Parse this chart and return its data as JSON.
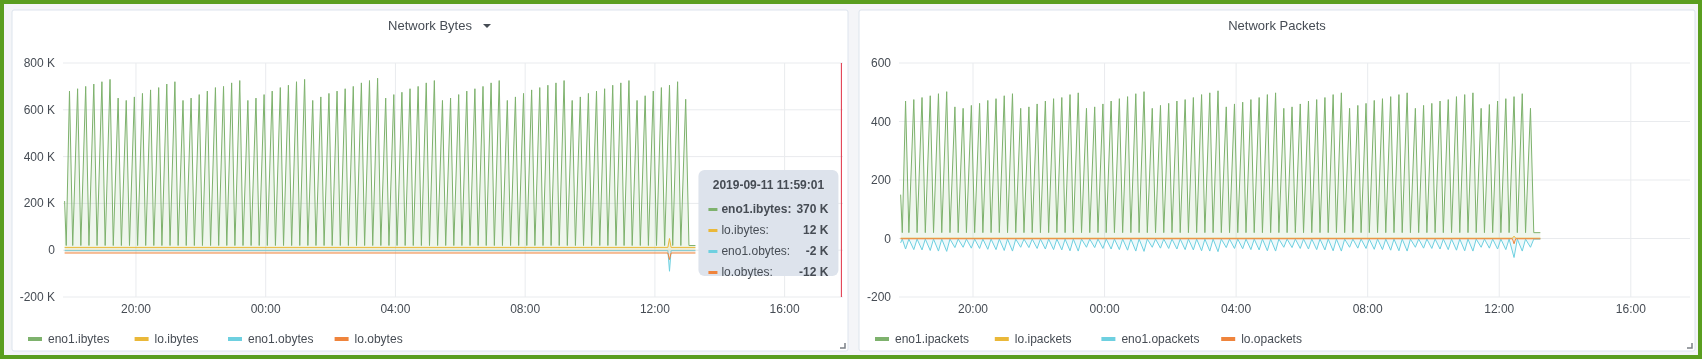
{
  "chart_data": [
    {
      "type": "area",
      "title": "Network Bytes",
      "x": [
        "2019-09-10T17:48",
        "2019-09-10T17:51",
        "2019-09-10T17:57",
        "2019-09-10T18:03",
        "2019-09-10T18:12",
        "2019-09-10T18:18",
        "2019-09-10T18:27",
        "2019-09-10T18:33",
        "2019-09-10T18:42",
        "2019-09-10T18:48",
        "2019-09-10T18:57",
        "2019-09-10T19:03",
        "2019-09-10T19:12",
        "2019-09-10T19:18",
        "2019-09-10T19:27",
        "2019-09-10T19:33",
        "2019-09-10T19:42",
        "2019-09-10T19:48",
        "2019-09-10T19:57",
        "2019-09-10T20:03",
        "2019-09-10T20:12",
        "2019-09-10T20:18",
        "2019-09-10T20:27",
        "2019-09-10T20:33",
        "2019-09-10T20:42",
        "2019-09-10T20:48",
        "2019-09-10T20:57",
        "2019-09-10T21:03",
        "2019-09-10T21:12",
        "2019-09-10T21:18",
        "2019-09-10T21:27",
        "2019-09-10T21:33",
        "2019-09-10T21:42",
        "2019-09-10T21:48",
        "2019-09-10T21:57",
        "2019-09-10T22:03",
        "2019-09-10T22:12",
        "2019-09-10T22:18",
        "2019-09-10T22:27",
        "2019-09-10T22:33",
        "2019-09-10T22:42",
        "2019-09-10T22:48",
        "2019-09-10T22:57",
        "2019-09-10T23:03",
        "2019-09-10T23:12",
        "2019-09-10T23:18",
        "2019-09-10T23:27",
        "2019-09-10T23:33",
        "2019-09-10T23:42",
        "2019-09-10T23:48",
        "2019-09-10T23:57",
        "2019-09-11T00:03",
        "2019-09-11T00:12",
        "2019-09-11T00:18",
        "2019-09-11T00:27",
        "2019-09-11T00:33",
        "2019-09-11T00:42",
        "2019-09-11T00:48",
        "2019-09-11T00:57",
        "2019-09-11T01:03",
        "2019-09-11T01:12",
        "2019-09-11T01:18",
        "2019-09-11T01:27",
        "2019-09-11T01:33",
        "2019-09-11T01:42",
        "2019-09-11T01:48",
        "2019-09-11T01:57",
        "2019-09-11T02:03",
        "2019-09-11T02:12",
        "2019-09-11T02:18",
        "2019-09-11T02:27",
        "2019-09-11T02:33",
        "2019-09-11T02:42",
        "2019-09-11T02:48",
        "2019-09-11T02:57",
        "2019-09-11T03:03",
        "2019-09-11T03:12",
        "2019-09-11T03:18",
        "2019-09-11T03:27",
        "2019-09-11T03:33",
        "2019-09-11T03:42",
        "2019-09-11T03:48",
        "2019-09-11T03:57",
        "2019-09-11T04:03",
        "2019-09-11T04:12",
        "2019-09-11T04:18",
        "2019-09-11T04:27",
        "2019-09-11T04:33",
        "2019-09-11T04:42",
        "2019-09-11T04:48",
        "2019-09-11T04:57",
        "2019-09-11T05:03",
        "2019-09-11T05:12",
        "2019-09-11T05:18",
        "2019-09-11T05:27",
        "2019-09-11T05:33",
        "2019-09-11T05:42",
        "2019-09-11T05:48",
        "2019-09-11T05:57",
        "2019-09-11T06:03",
        "2019-09-11T06:12",
        "2019-09-11T06:18",
        "2019-09-11T06:27",
        "2019-09-11T06:33",
        "2019-09-11T06:42",
        "2019-09-11T06:48",
        "2019-09-11T06:57",
        "2019-09-11T07:03",
        "2019-09-11T07:12",
        "2019-09-11T07:18",
        "2019-09-11T07:27",
        "2019-09-11T07:33",
        "2019-09-11T07:42",
        "2019-09-11T07:48",
        "2019-09-11T07:57",
        "2019-09-11T08:03",
        "2019-09-11T08:12",
        "2019-09-11T08:18",
        "2019-09-11T08:27",
        "2019-09-11T08:33",
        "2019-09-11T08:42",
        "2019-09-11T08:48",
        "2019-09-11T08:57",
        "2019-09-11T09:03",
        "2019-09-11T09:12",
        "2019-09-11T09:18",
        "2019-09-11T09:27",
        "2019-09-11T09:33",
        "2019-09-11T09:42",
        "2019-09-11T09:48",
        "2019-09-11T09:57",
        "2019-09-11T10:03",
        "2019-09-11T10:12",
        "2019-09-11T10:18",
        "2019-09-11T10:27",
        "2019-09-11T10:33",
        "2019-09-11T10:42",
        "2019-09-11T10:48",
        "2019-09-11T10:57",
        "2019-09-11T11:03",
        "2019-09-11T11:12",
        "2019-09-11T11:18",
        "2019-09-11T11:27",
        "2019-09-11T11:33",
        "2019-09-11T11:42",
        "2019-09-11T11:48",
        "2019-09-11T11:57",
        "2019-09-11T12:03",
        "2019-09-11T12:12",
        "2019-09-11T12:18",
        "2019-09-11T12:27",
        "2019-09-11T12:33",
        "2019-09-11T12:42",
        "2019-09-11T12:48",
        "2019-09-11T12:57",
        "2019-09-11T13:03",
        "2019-09-11T13:15"
      ],
      "series": [
        {
          "name": "eno1.ibytes",
          "color": "#7eb26d",
          "values": [
            210,
            20,
            680,
            20,
            690,
            20,
            700,
            20,
            710,
            20,
            720,
            20,
            730,
            20,
            650,
            20,
            640,
            20,
            655,
            20,
            670,
            20,
            685,
            20,
            695,
            20,
            710,
            20,
            720,
            20,
            640,
            20,
            650,
            20,
            665,
            20,
            680,
            20,
            695,
            20,
            700,
            20,
            715,
            20,
            725,
            20,
            640,
            20,
            650,
            20,
            665,
            20,
            680,
            20,
            695,
            20,
            705,
            20,
            720,
            20,
            730,
            20,
            640,
            20,
            655,
            20,
            670,
            20,
            680,
            20,
            690,
            20,
            700,
            20,
            715,
            20,
            725,
            20,
            735,
            20,
            650,
            20,
            665,
            20,
            675,
            20,
            690,
            20,
            700,
            20,
            715,
            20,
            725,
            20,
            640,
            20,
            650,
            20,
            665,
            20,
            680,
            20,
            690,
            20,
            700,
            20,
            715,
            20,
            725,
            20,
            640,
            20,
            655,
            20,
            670,
            20,
            685,
            20,
            695,
            20,
            705,
            20,
            715,
            20,
            725,
            20,
            640,
            20,
            655,
            20,
            670,
            20,
            680,
            20,
            690,
            20,
            705,
            20,
            715,
            20,
            725,
            20,
            640,
            20,
            660,
            20,
            680,
            20,
            695,
            20,
            705,
            20,
            720,
            20,
            645,
            20,
            20
          ]
        },
        {
          "name": "lo.ibytes",
          "color": "#eab839",
          "x": [
            "2019-09-10T17:48",
            "2019-09-11T12:24",
            "2019-09-11T12:27",
            "2019-09-11T12:30",
            "2019-09-11T13:15"
          ],
          "values": [
            12,
            12,
            50,
            12,
            12
          ]
        },
        {
          "name": "eno1.obytes",
          "color": "#6ed0e0",
          "x": [
            "2019-09-10T17:48",
            "2019-09-11T12:24",
            "2019-09-11T12:27",
            "2019-09-11T12:30",
            "2019-09-11T13:15"
          ],
          "values": [
            -2,
            -2,
            -90,
            -2,
            -2
          ]
        },
        {
          "name": "lo.obytes",
          "color": "#ef843c",
          "x": [
            "2019-09-10T17:48",
            "2019-09-11T12:24",
            "2019-09-11T12:27",
            "2019-09-11T12:30",
            "2019-09-11T13:15"
          ],
          "values": [
            -12,
            -12,
            -40,
            -12,
            -12
          ]
        }
      ],
      "xlim": [
        "2019-09-10T17:45",
        "2019-09-11T17:48"
      ],
      "xticks": [
        {
          "value": "2019-09-10T20:00",
          "label": "20:00"
        },
        {
          "value": "2019-09-11T00:00",
          "label": "00:00"
        },
        {
          "value": "2019-09-11T04:00",
          "label": "04:00"
        },
        {
          "value": "2019-09-11T08:00",
          "label": "08:00"
        },
        {
          "value": "2019-09-11T12:00",
          "label": "12:00"
        },
        {
          "value": "2019-09-11T16:00",
          "label": "16:00"
        }
      ],
      "ylim": [
        -200,
        800
      ],
      "yticks": [
        {
          "value": -200,
          "label": "-200 K"
        },
        0,
        {
          "value": 200,
          "label": "200 K"
        },
        {
          "value": 400,
          "label": "400 K"
        },
        {
          "value": 600,
          "label": "600 K"
        },
        {
          "value": 800,
          "label": "800 K"
        }
      ],
      "ref_lines": [
        {
          "axis": "x",
          "value": "2019-09-11T17:45",
          "color": "#e02f44"
        }
      ],
      "annotations": [
        "2019-09-11 11:59:01",
        "eno1.ibytes:",
        "370 K",
        "lo.ibytes:",
        "12 K",
        "eno1.obytes:",
        "-2 K",
        "lo.obytes:",
        "-12 K"
      ],
      "grid": true,
      "legend": "bottom"
    },
    {
      "type": "area",
      "title": "Network Packets",
      "x": [
        "2019-09-10T17:48",
        "2019-09-10T17:51",
        "2019-09-10T17:57",
        "2019-09-10T18:03",
        "2019-09-10T18:12",
        "2019-09-10T18:18",
        "2019-09-10T18:27",
        "2019-09-10T18:33",
        "2019-09-10T18:42",
        "2019-09-10T18:48",
        "2019-09-10T18:57",
        "2019-09-10T19:03",
        "2019-09-10T19:12",
        "2019-09-10T19:18",
        "2019-09-10T19:27",
        "2019-09-10T19:33",
        "2019-09-10T19:42",
        "2019-09-10T19:48",
        "2019-09-10T19:57",
        "2019-09-10T20:03",
        "2019-09-10T20:12",
        "2019-09-10T20:18",
        "2019-09-10T20:27",
        "2019-09-10T20:33",
        "2019-09-10T20:42",
        "2019-09-10T20:48",
        "2019-09-10T20:57",
        "2019-09-10T21:03",
        "2019-09-10T21:12",
        "2019-09-10T21:18",
        "2019-09-10T21:27",
        "2019-09-10T21:33",
        "2019-09-10T21:42",
        "2019-09-10T21:48",
        "2019-09-10T21:57",
        "2019-09-10T22:03",
        "2019-09-10T22:12",
        "2019-09-10T22:18",
        "2019-09-10T22:27",
        "2019-09-10T22:33",
        "2019-09-10T22:42",
        "2019-09-10T22:48",
        "2019-09-10T22:57",
        "2019-09-10T23:03",
        "2019-09-10T23:12",
        "2019-09-10T23:18",
        "2019-09-10T23:27",
        "2019-09-10T23:33",
        "2019-09-10T23:42",
        "2019-09-10T23:48",
        "2019-09-10T23:57",
        "2019-09-11T00:03",
        "2019-09-11T00:12",
        "2019-09-11T00:18",
        "2019-09-11T00:27",
        "2019-09-11T00:33",
        "2019-09-11T00:42",
        "2019-09-11T00:48",
        "2019-09-11T00:57",
        "2019-09-11T01:03",
        "2019-09-11T01:12",
        "2019-09-11T01:18",
        "2019-09-11T01:27",
        "2019-09-11T01:33",
        "2019-09-11T01:42",
        "2019-09-11T01:48",
        "2019-09-11T01:57",
        "2019-09-11T02:03",
        "2019-09-11T02:12",
        "2019-09-11T02:18",
        "2019-09-11T02:27",
        "2019-09-11T02:33",
        "2019-09-11T02:42",
        "2019-09-11T02:48",
        "2019-09-11T02:57",
        "2019-09-11T03:03",
        "2019-09-11T03:12",
        "2019-09-11T03:18",
        "2019-09-11T03:27",
        "2019-09-11T03:33",
        "2019-09-11T03:42",
        "2019-09-11T03:48",
        "2019-09-11T03:57",
        "2019-09-11T04:03",
        "2019-09-11T04:12",
        "2019-09-11T04:18",
        "2019-09-11T04:27",
        "2019-09-11T04:33",
        "2019-09-11T04:42",
        "2019-09-11T04:48",
        "2019-09-11T04:57",
        "2019-09-11T05:03",
        "2019-09-11T05:12",
        "2019-09-11T05:18",
        "2019-09-11T05:27",
        "2019-09-11T05:33",
        "2019-09-11T05:42",
        "2019-09-11T05:48",
        "2019-09-11T05:57",
        "2019-09-11T06:03",
        "2019-09-11T06:12",
        "2019-09-11T06:18",
        "2019-09-11T06:27",
        "2019-09-11T06:33",
        "2019-09-11T06:42",
        "2019-09-11T06:48",
        "2019-09-11T06:57",
        "2019-09-11T07:03",
        "2019-09-11T07:12",
        "2019-09-11T07:18",
        "2019-09-11T07:27",
        "2019-09-11T07:33",
        "2019-09-11T07:42",
        "2019-09-11T07:48",
        "2019-09-11T07:57",
        "2019-09-11T08:03",
        "2019-09-11T08:12",
        "2019-09-11T08:18",
        "2019-09-11T08:27",
        "2019-09-11T08:33",
        "2019-09-11T08:42",
        "2019-09-11T08:48",
        "2019-09-11T08:57",
        "2019-09-11T09:03",
        "2019-09-11T09:12",
        "2019-09-11T09:18",
        "2019-09-11T09:27",
        "2019-09-11T09:33",
        "2019-09-11T09:42",
        "2019-09-11T09:48",
        "2019-09-11T09:57",
        "2019-09-11T10:03",
        "2019-09-11T10:12",
        "2019-09-11T10:18",
        "2019-09-11T10:27",
        "2019-09-11T10:33",
        "2019-09-11T10:42",
        "2019-09-11T10:48",
        "2019-09-11T10:57",
        "2019-09-11T11:03",
        "2019-09-11T11:12",
        "2019-09-11T11:18",
        "2019-09-11T11:27",
        "2019-09-11T11:33",
        "2019-09-11T11:42",
        "2019-09-11T11:48",
        "2019-09-11T11:57",
        "2019-09-11T12:03",
        "2019-09-11T12:12",
        "2019-09-11T12:18",
        "2019-09-11T12:27",
        "2019-09-11T12:33",
        "2019-09-11T12:42",
        "2019-09-11T12:48",
        "2019-09-11T12:57",
        "2019-09-11T13:03",
        "2019-09-11T13:15"
      ],
      "series": [
        {
          "name": "eno1.ipackets",
          "color": "#7eb26d",
          "values": [
            150,
            20,
            470,
            20,
            475,
            20,
            482,
            20,
            488,
            20,
            495,
            20,
            502,
            20,
            450,
            20,
            445,
            20,
            455,
            20,
            462,
            20,
            472,
            20,
            478,
            20,
            488,
            20,
            495,
            20,
            445,
            20,
            450,
            20,
            460,
            20,
            470,
            20,
            478,
            20,
            482,
            20,
            492,
            20,
            498,
            20,
            445,
            20,
            450,
            20,
            460,
            20,
            470,
            20,
            478,
            20,
            485,
            20,
            495,
            20,
            502,
            20,
            445,
            20,
            455,
            20,
            462,
            20,
            470,
            20,
            475,
            20,
            482,
            20,
            492,
            20,
            498,
            20,
            505,
            20,
            450,
            20,
            460,
            20,
            466,
            20,
            475,
            20,
            482,
            20,
            492,
            20,
            498,
            20,
            445,
            20,
            450,
            20,
            460,
            20,
            470,
            20,
            475,
            20,
            482,
            20,
            492,
            20,
            498,
            20,
            445,
            20,
            455,
            20,
            462,
            20,
            472,
            20,
            478,
            20,
            485,
            20,
            492,
            20,
            498,
            20,
            445,
            20,
            455,
            20,
            462,
            20,
            470,
            20,
            475,
            20,
            485,
            20,
            492,
            20,
            498,
            20,
            445,
            20,
            458,
            20,
            470,
            20,
            478,
            20,
            485,
            20,
            495,
            20,
            445,
            20,
            20
          ]
        },
        {
          "name": "lo.ipackets",
          "color": "#eab839",
          "x": [
            "2019-09-10T17:48",
            "2019-09-11T12:24",
            "2019-09-11T12:27",
            "2019-09-11T12:30",
            "2019-09-11T13:15"
          ],
          "values": [
            1,
            1,
            8,
            1,
            1
          ]
        },
        {
          "name": "eno1.opackets",
          "color": "#6ed0e0",
          "values": [
            -15,
            -2,
            -36,
            -2,
            -38,
            -2,
            -39,
            -2,
            -41,
            -2,
            -43,
            -2,
            -44,
            -2,
            -31,
            -2,
            -30,
            -2,
            -33,
            -2,
            -34,
            -2,
            -37,
            -2,
            -38,
            -2,
            -41,
            -2,
            -43,
            -2,
            -30,
            -2,
            -31,
            -2,
            -34,
            -2,
            -36,
            -2,
            -38,
            -2,
            -39,
            -2,
            -42,
            -2,
            -43,
            -2,
            -30,
            -2,
            -31,
            -2,
            -34,
            -2,
            -36,
            -2,
            -38,
            -2,
            -40,
            -2,
            -43,
            -2,
            -44,
            -2,
            -30,
            -2,
            -33,
            -2,
            -34,
            -2,
            -36,
            -2,
            -38,
            -2,
            -39,
            -2,
            -42,
            -2,
            -43,
            -2,
            -45,
            -2,
            -31,
            -2,
            -34,
            -2,
            -35,
            -2,
            -38,
            -2,
            -39,
            -2,
            -42,
            -2,
            -43,
            -2,
            -30,
            -2,
            -31,
            -2,
            -34,
            -2,
            -36,
            -2,
            -38,
            -2,
            -39,
            -2,
            -42,
            -2,
            -43,
            -2,
            -30,
            -2,
            -33,
            -2,
            -34,
            -2,
            -37,
            -2,
            -38,
            -2,
            -40,
            -2,
            -42,
            -2,
            -43,
            -2,
            -30,
            -2,
            -33,
            -2,
            -34,
            -2,
            -36,
            -2,
            -38,
            -2,
            -40,
            -2,
            -42,
            -2,
            -43,
            -2,
            -30,
            -2,
            -33,
            -2,
            -36,
            -2,
            -38,
            -2,
            -65,
            -2,
            -43,
            -2,
            -30,
            -2,
            -2
          ]
        },
        {
          "name": "lo.opackets",
          "color": "#ef843c",
          "x": [
            "2019-09-10T17:48",
            "2019-09-11T12:24",
            "2019-09-11T12:27",
            "2019-09-11T12:30",
            "2019-09-11T13:15"
          ],
          "values": [
            -1,
            -1,
            -18,
            -1,
            -1
          ]
        }
      ],
      "xlim": [
        "2019-09-10T17:45",
        "2019-09-11T17:48"
      ],
      "xticks": [
        {
          "value": "2019-09-10T20:00",
          "label": "20:00"
        },
        {
          "value": "2019-09-11T00:00",
          "label": "00:00"
        },
        {
          "value": "2019-09-11T04:00",
          "label": "04:00"
        },
        {
          "value": "2019-09-11T08:00",
          "label": "08:00"
        },
        {
          "value": "2019-09-11T12:00",
          "label": "12:00"
        },
        {
          "value": "2019-09-11T16:00",
          "label": "16:00"
        }
      ],
      "ylim": [
        -200,
        600
      ],
      "yticks": [
        -200,
        0,
        200,
        400,
        600
      ],
      "grid": true,
      "legend": "bottom"
    }
  ]
}
